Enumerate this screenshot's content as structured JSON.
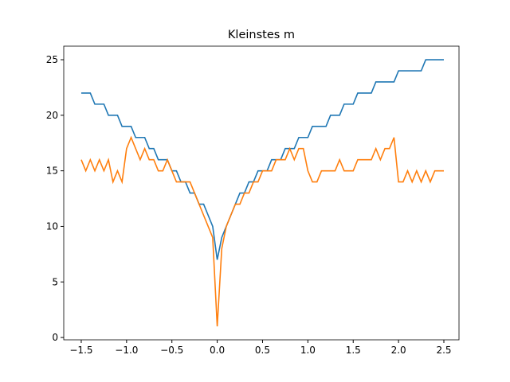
{
  "chart_data": {
    "type": "line",
    "title": "Kleinstes m",
    "x": [
      -1.5,
      -1.45,
      -1.4,
      -1.35,
      -1.3,
      -1.25,
      -1.2,
      -1.15,
      -1.1,
      -1.05,
      -1.0,
      -0.95,
      -0.9,
      -0.85,
      -0.8,
      -0.75,
      -0.7,
      -0.65,
      -0.6,
      -0.55,
      -0.5,
      -0.45,
      -0.4,
      -0.35,
      -0.3,
      -0.25,
      -0.2,
      -0.15,
      -0.1,
      -0.05,
      0,
      0.05,
      0.1,
      0.15,
      0.2,
      0.25,
      0.3,
      0.35,
      0.4,
      0.45,
      0.5,
      0.55,
      0.6,
      0.65,
      0.7,
      0.75,
      0.8,
      0.85,
      0.9,
      0.95,
      1.0,
      1.05,
      1.1,
      1.15,
      1.2,
      1.25,
      1.3,
      1.35,
      1.4,
      1.45,
      1.5,
      1.55,
      1.6,
      1.65,
      1.7,
      1.75,
      1.8,
      1.85,
      1.9,
      1.95,
      2.0,
      2.05,
      2.1,
      2.15,
      2.2,
      2.25,
      2.3,
      2.35,
      2.4,
      2.45,
      2.5
    ],
    "series": [
      {
        "color": "#1f77b4",
        "values": [
          22,
          22,
          22,
          21,
          21,
          21,
          20,
          20,
          20,
          19,
          19,
          19,
          18,
          18,
          18,
          17,
          17,
          16,
          16,
          16,
          15,
          15,
          14,
          14,
          13,
          13,
          12,
          12,
          11,
          10,
          7,
          9,
          10,
          11,
          12,
          13,
          13,
          14,
          14,
          15,
          15,
          15,
          16,
          16,
          16,
          17,
          17,
          17,
          18,
          18,
          18,
          19,
          19,
          19,
          19,
          20,
          20,
          20,
          21,
          21,
          21,
          22,
          22,
          22,
          22,
          23,
          23,
          23,
          23,
          23,
          24,
          24,
          24,
          24,
          24,
          24,
          25,
          25,
          25,
          25,
          25
        ]
      },
      {
        "color": "#ff7f0e",
        "values": [
          16,
          15,
          16,
          15,
          16,
          15,
          16,
          14,
          15,
          14,
          17,
          18,
          17,
          16,
          17,
          16,
          16,
          15,
          15,
          16,
          15,
          14,
          14,
          14,
          14,
          13,
          12,
          11,
          10,
          9,
          1,
          8,
          10,
          11,
          12,
          12,
          13,
          13,
          14,
          14,
          15,
          15,
          15,
          16,
          16,
          16,
          17,
          16,
          17,
          17,
          15,
          14,
          14,
          15,
          15,
          15,
          15,
          16,
          15,
          15,
          15,
          16,
          16,
          16,
          16,
          17,
          16,
          17,
          17,
          18,
          14,
          14,
          15,
          14,
          15,
          14,
          15,
          14,
          15,
          15,
          15
        ]
      }
    ],
    "xlim": [
      -1.693,
      2.667
    ],
    "ylim": [
      -0.21,
      26.22
    ],
    "xticks": [
      {
        "value": -1.5,
        "label": "−1.5"
      },
      {
        "value": -1.0,
        "label": "−1.0"
      },
      {
        "value": -0.5,
        "label": "−0.5"
      },
      {
        "value": 0,
        "label": "0.0"
      },
      {
        "value": 0.5,
        "label": "0.5"
      },
      {
        "value": 1.0,
        "label": "1.0"
      },
      {
        "value": 1.5,
        "label": "1.5"
      },
      {
        "value": 2.0,
        "label": "2.0"
      },
      {
        "value": 2.5,
        "label": "2.5"
      }
    ],
    "yticks": [
      0,
      5,
      10,
      15,
      20,
      25
    ]
  }
}
